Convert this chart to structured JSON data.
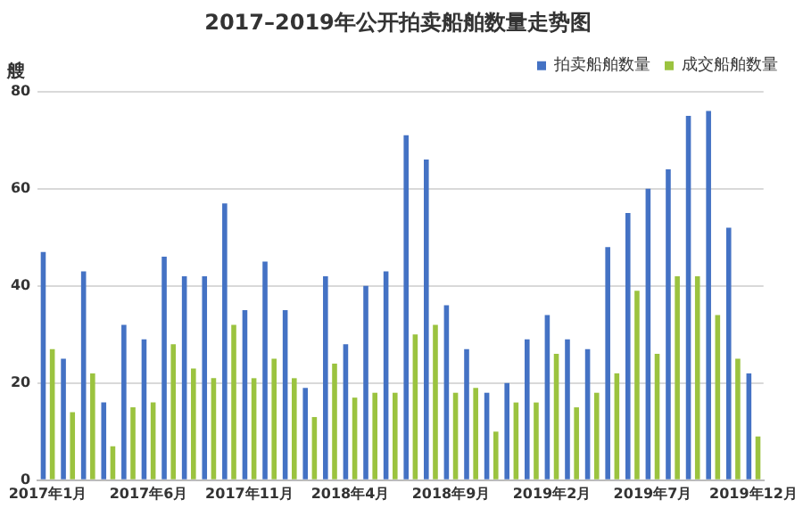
{
  "chart_data": {
    "type": "bar",
    "title": "2017–2019年公开拍卖船舶数量走势图",
    "ylabel": "艘",
    "categories": [
      "2017年1月",
      null,
      null,
      null,
      null,
      "2017年6月",
      null,
      null,
      null,
      null,
      "2017年11月",
      null,
      null,
      null,
      null,
      "2018年4月",
      null,
      null,
      null,
      null,
      "2018年9月",
      null,
      null,
      null,
      null,
      "2019年2月",
      null,
      null,
      null,
      null,
      "2019年7月",
      null,
      null,
      null,
      null,
      "2019年12月"
    ],
    "series": [
      {
        "name": "拍卖船舶数量",
        "color": "#4472c4",
        "values": [
          47,
          25,
          43,
          16,
          32,
          29,
          46,
          42,
          42,
          57,
          35,
          45,
          35,
          19,
          42,
          28,
          40,
          43,
          71,
          66,
          36,
          27,
          18,
          20,
          29,
          34,
          29,
          27,
          48,
          55,
          60,
          64,
          75,
          76,
          52,
          22
        ]
      },
      {
        "name": "成交船舶数量",
        "color": "#9bc33f",
        "values": [
          27,
          14,
          22,
          7,
          15,
          16,
          28,
          23,
          21,
          32,
          21,
          25,
          21,
          13,
          24,
          17,
          18,
          18,
          30,
          32,
          18,
          19,
          10,
          16,
          16,
          26,
          15,
          18,
          22,
          39,
          26,
          42,
          42,
          34,
          25,
          9
        ]
      }
    ],
    "ylim": [
      0,
      80
    ],
    "yticks": [
      0,
      20,
      40,
      60,
      80
    ],
    "grid": "y",
    "legend": "top right"
  }
}
